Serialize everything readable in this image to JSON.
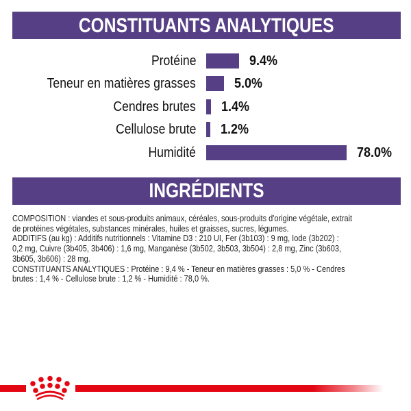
{
  "header": {
    "title": "CONSTITUANTS ANALYTIQUES"
  },
  "chart_data": {
    "type": "bar",
    "orientation": "horizontal",
    "title": "CONSTITUANTS ANALYTIQUES",
    "categories": [
      "Protéine",
      "Teneur en matières grasses",
      "Cendres brutes",
      "Cellulose brute",
      "Humidité"
    ],
    "values": [
      9.4,
      5.0,
      1.4,
      1.2,
      78.0
    ],
    "value_labels": [
      "9.4%",
      "5.0%",
      "1.4%",
      "1.2%",
      "78.0%"
    ],
    "unit": "%",
    "bar_color": "#563f85",
    "grid": false
  },
  "ingredients": {
    "title": "INGRÉDIENTS",
    "lines": [
      "COMPOSITION : viandes et sous-produits animaux, céréales, sous-produits d'origine végétale, extrait",
      "de protéines végétales, substances minérales, huiles et graisses, sucres, légumes.",
      "ADDITIFS (au kg) : Additifs nutritionnels : Vitamine D3 : 210 UI, Fer (3b103) : 9 mg, Iode (3b202) :",
      "0,2 mg, Cuivre (3b405, 3b406) : 1,6 mg, Manganèse (3b502, 3b503, 3b504) : 2,8 mg, Zinc (3b603,",
      "3b605, 3b606) : 28 mg.",
      "CONSTITUANTS ANALYTIQUES : Protéine : 9,4 % - Teneur en matières grasses : 5,0 % - Cendres",
      "brutes : 1,4 % - Cellulose brute : 1,2 % - Humidité : 78,0 %."
    ]
  },
  "colors": {
    "band": "#563f85",
    "brand_red": "#e30613"
  },
  "logo": {
    "icon": "royal-canin-crown-icon"
  }
}
